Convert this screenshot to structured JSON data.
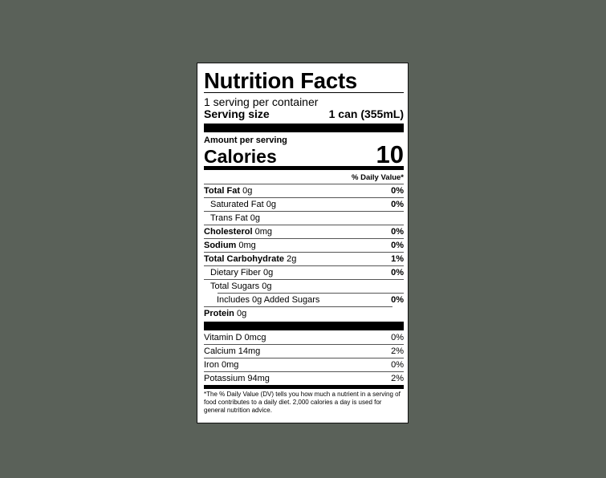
{
  "background_color": "#5a6159",
  "label": {
    "title": "Nutrition Facts",
    "servings_per_container": "1 serving per container",
    "serving_size_label": "Serving size",
    "serving_size_value": "1 can (355mL)",
    "amount_per_serving": "Amount per serving",
    "calories_label": "Calories",
    "calories_value": "10",
    "daily_value_header": "% Daily Value*",
    "nutrients": [
      {
        "name": "Total Fat",
        "amount": "0g",
        "dv": "0%"
      },
      {
        "name": "Saturated Fat",
        "amount": "0g",
        "dv": "0%"
      },
      {
        "name": "Trans Fat",
        "amount": "0g",
        "dv": ""
      },
      {
        "name": "Cholesterol",
        "amount": "0mg",
        "dv": "0%"
      },
      {
        "name": "Sodium",
        "amount": "0mg",
        "dv": "0%"
      },
      {
        "name": "Total Carbohydrate",
        "amount": "2g",
        "dv": "1%"
      },
      {
        "name": "Dietary Fiber",
        "amount": "0g",
        "dv": "0%"
      },
      {
        "name": "Total Sugars",
        "amount": "0g",
        "dv": ""
      },
      {
        "name": "Includes 0g Added Sugars",
        "amount": "",
        "dv": "0%"
      },
      {
        "name": "Protein",
        "amount": "0g",
        "dv": ""
      }
    ],
    "minerals": [
      {
        "name": "Vitamin D 0mcg",
        "dv": "0%"
      },
      {
        "name": "Calcium 14mg",
        "dv": "2%"
      },
      {
        "name": "Iron 0mg",
        "dv": "0%"
      },
      {
        "name": "Potassium 94mg",
        "dv": "2%"
      }
    ],
    "footnote": "*The % Daily Value (DV) tells you how much a nutrient in a serving of food contributes to a daily diet. 2,000 calories a day is used for general nutrition advice."
  }
}
